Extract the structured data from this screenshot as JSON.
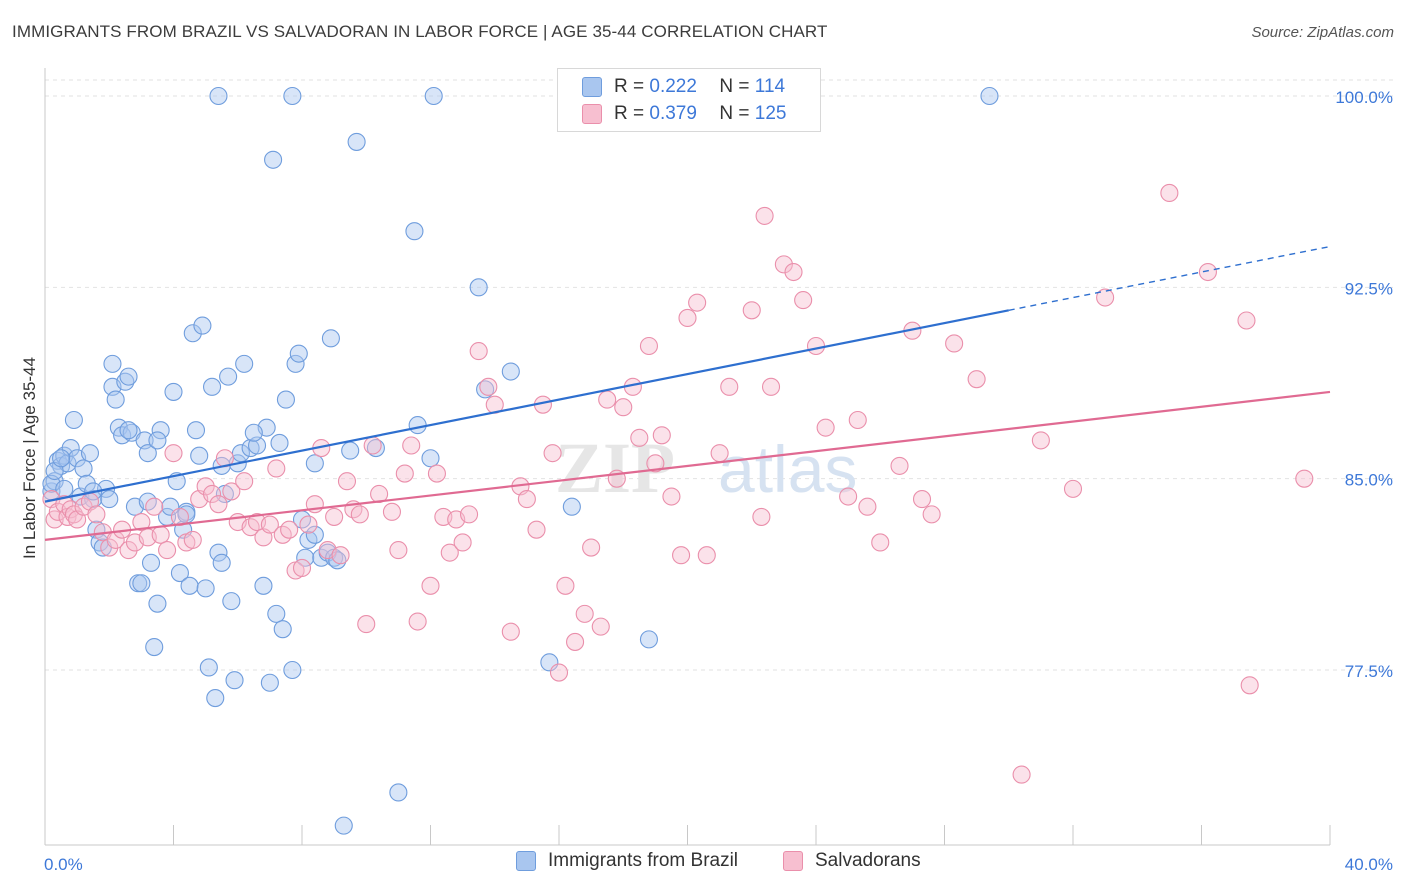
{
  "title": "IMMIGRANTS FROM BRAZIL VS SALVADORAN IN LABOR FORCE | AGE 35-44 CORRELATION CHART",
  "source": "Source: ZipAtlas.com",
  "watermark": "ZIPatlas",
  "legend": {
    "r_label": "R =",
    "n_label": "N =",
    "rows": [
      {
        "r": "0.222",
        "n": "114",
        "color": "#a9c6ef",
        "border": "#6f9ddd"
      },
      {
        "r": "0.379",
        "n": "125",
        "color": "#f7bfd0",
        "border": "#ea8fab"
      }
    ]
  },
  "chart_data": {
    "type": "scatter",
    "title": "IMMIGRANTS FROM BRAZIL VS SALVADORAN IN LABOR FORCE | AGE 35-44 CORRELATION CHART",
    "xlabel": "",
    "ylabel": "In Labor Force | Age 35-44",
    "xlim": [
      0,
      40
    ],
    "ylim": [
      71.0,
      101.0
    ],
    "x_tick_labels": {
      "min": "0.0%",
      "max": "40.0%"
    },
    "y_ticks": [
      {
        "value": 77.5,
        "label": "77.5%"
      },
      {
        "value": 85.0,
        "label": "85.0%"
      },
      {
        "value": 92.5,
        "label": "92.5%"
      },
      {
        "value": 100.0,
        "label": "100.0%"
      }
    ],
    "grid": true,
    "legend_position": "top-center",
    "series": [
      {
        "name": "Immigrants from Brazil",
        "color": "#6f9ddd",
        "fill": "#a9c6ef",
        "trend": {
          "x0": 0.0,
          "y0": 84.1,
          "x1": 30.0,
          "y1": 91.6,
          "dash_to_x": 40.0,
          "dash_to_y": 94.1,
          "color": "#2e6fcf"
        },
        "points": [
          [
            0.2,
            84.5
          ],
          [
            0.3,
            84.9
          ],
          [
            0.4,
            85.7
          ],
          [
            0.5,
            85.5
          ],
          [
            0.6,
            85.9
          ],
          [
            0.7,
            85.6
          ],
          [
            0.8,
            86.2
          ],
          [
            0.9,
            87.3
          ],
          [
            1.0,
            85.8
          ],
          [
            1.1,
            84.3
          ],
          [
            1.2,
            85.4
          ],
          [
            1.3,
            84.8
          ],
          [
            1.4,
            86.0
          ],
          [
            1.5,
            84.2
          ],
          [
            1.6,
            83.0
          ],
          [
            1.7,
            82.5
          ],
          [
            1.8,
            82.3
          ],
          [
            1.9,
            84.6
          ],
          [
            2.0,
            84.2
          ],
          [
            2.1,
            88.6
          ],
          [
            2.2,
            88.1
          ],
          [
            2.3,
            87.0
          ],
          [
            2.4,
            86.7
          ],
          [
            2.5,
            88.8
          ],
          [
            2.6,
            89.0
          ],
          [
            2.7,
            86.8
          ],
          [
            2.8,
            83.9
          ],
          [
            2.9,
            80.9
          ],
          [
            3.0,
            80.9
          ],
          [
            3.1,
            86.5
          ],
          [
            3.2,
            86.0
          ],
          [
            3.3,
            81.7
          ],
          [
            3.4,
            78.4
          ],
          [
            3.5,
            80.1
          ],
          [
            3.6,
            86.9
          ],
          [
            3.8,
            83.5
          ],
          [
            3.9,
            83.9
          ],
          [
            4.0,
            88.4
          ],
          [
            4.1,
            84.9
          ],
          [
            4.2,
            81.3
          ],
          [
            4.3,
            83.0
          ],
          [
            4.4,
            83.7
          ],
          [
            4.5,
            80.8
          ],
          [
            4.6,
            90.7
          ],
          [
            4.7,
            86.9
          ],
          [
            4.8,
            85.9
          ],
          [
            4.9,
            91.0
          ],
          [
            5.0,
            80.7
          ],
          [
            5.1,
            77.6
          ],
          [
            5.2,
            88.6
          ],
          [
            5.3,
            76.4
          ],
          [
            5.4,
            82.1
          ],
          [
            5.5,
            81.7
          ],
          [
            5.6,
            84.4
          ],
          [
            5.7,
            89.0
          ],
          [
            5.8,
            80.2
          ],
          [
            5.9,
            77.1
          ],
          [
            6.0,
            85.6
          ],
          [
            6.1,
            86.0
          ],
          [
            6.2,
            89.5
          ],
          [
            6.4,
            86.2
          ],
          [
            6.6,
            86.3
          ],
          [
            6.8,
            80.8
          ],
          [
            6.9,
            87.0
          ],
          [
            7.0,
            77.0
          ],
          [
            7.1,
            97.5
          ],
          [
            7.2,
            79.7
          ],
          [
            7.3,
            86.4
          ],
          [
            7.4,
            79.1
          ],
          [
            7.5,
            88.1
          ],
          [
            7.7,
            77.5
          ],
          [
            7.8,
            89.5
          ],
          [
            7.9,
            89.9
          ],
          [
            8.0,
            83.4
          ],
          [
            8.1,
            81.9
          ],
          [
            8.2,
            82.6
          ],
          [
            8.4,
            85.6
          ],
          [
            8.6,
            81.9
          ],
          [
            8.8,
            82.1
          ],
          [
            8.9,
            90.5
          ],
          [
            9.0,
            81.9
          ],
          [
            9.1,
            81.8
          ],
          [
            9.3,
            71.4
          ],
          [
            9.5,
            86.1
          ],
          [
            9.7,
            98.2
          ],
          [
            10.3,
            86.2
          ],
          [
            11.0,
            72.7
          ],
          [
            11.5,
            94.7
          ],
          [
            11.6,
            87.1
          ],
          [
            12.0,
            85.8
          ],
          [
            13.5,
            92.5
          ],
          [
            13.7,
            88.5
          ],
          [
            14.5,
            89.2
          ],
          [
            15.7,
            77.8
          ],
          [
            16.4,
            83.9
          ],
          [
            18.8,
            78.7
          ],
          [
            20.0,
            100.0
          ],
          [
            29.4,
            100.0
          ],
          [
            5.4,
            100.0
          ],
          [
            7.7,
            100.0
          ],
          [
            12.1,
            100.0
          ],
          [
            0.2,
            84.8
          ],
          [
            0.3,
            85.3
          ],
          [
            0.5,
            85.8
          ],
          [
            0.6,
            84.6
          ],
          [
            1.5,
            84.5
          ],
          [
            2.1,
            89.5
          ],
          [
            3.5,
            86.5
          ],
          [
            5.5,
            85.5
          ],
          [
            6.5,
            86.8
          ],
          [
            4.4,
            83.6
          ],
          [
            8.4,
            82.8
          ],
          [
            3.2,
            84.1
          ],
          [
            2.6,
            86.9
          ]
        ]
      },
      {
        "name": "Salvadorans",
        "color": "#ea8fab",
        "fill": "#f7bfd0",
        "trend": {
          "x0": 0.0,
          "y0": 82.6,
          "x1": 40.0,
          "y1": 88.4,
          "color": "#e06a92"
        },
        "points": [
          [
            0.2,
            84.2
          ],
          [
            0.3,
            83.4
          ],
          [
            0.4,
            83.7
          ],
          [
            0.6,
            84.0
          ],
          [
            0.7,
            83.5
          ],
          [
            0.8,
            83.8
          ],
          [
            0.9,
            83.6
          ],
          [
            1.0,
            83.4
          ],
          [
            1.2,
            83.9
          ],
          [
            1.4,
            84.1
          ],
          [
            1.6,
            83.6
          ],
          [
            1.8,
            82.9
          ],
          [
            2.0,
            82.3
          ],
          [
            2.2,
            82.6
          ],
          [
            2.4,
            83.0
          ],
          [
            2.6,
            82.2
          ],
          [
            2.8,
            82.5
          ],
          [
            3.0,
            83.3
          ],
          [
            3.2,
            82.7
          ],
          [
            3.4,
            83.9
          ],
          [
            3.6,
            82.8
          ],
          [
            3.8,
            82.2
          ],
          [
            4.0,
            86.0
          ],
          [
            4.2,
            83.5
          ],
          [
            4.4,
            82.5
          ],
          [
            4.6,
            82.6
          ],
          [
            4.8,
            84.2
          ],
          [
            5.0,
            84.7
          ],
          [
            5.2,
            84.4
          ],
          [
            5.4,
            84.0
          ],
          [
            5.6,
            85.8
          ],
          [
            5.8,
            84.5
          ],
          [
            6.0,
            83.3
          ],
          [
            6.2,
            84.9
          ],
          [
            6.4,
            83.1
          ],
          [
            6.6,
            83.3
          ],
          [
            6.8,
            82.7
          ],
          [
            7.0,
            83.2
          ],
          [
            7.2,
            85.4
          ],
          [
            7.4,
            82.8
          ],
          [
            7.6,
            83.0
          ],
          [
            7.8,
            81.4
          ],
          [
            8.0,
            81.5
          ],
          [
            8.2,
            83.2
          ],
          [
            8.4,
            84.0
          ],
          [
            8.6,
            86.2
          ],
          [
            8.8,
            82.2
          ],
          [
            9.0,
            83.5
          ],
          [
            9.2,
            82.0
          ],
          [
            9.4,
            84.9
          ],
          [
            9.6,
            83.8
          ],
          [
            9.8,
            83.6
          ],
          [
            10.0,
            79.3
          ],
          [
            10.2,
            86.3
          ],
          [
            10.4,
            84.4
          ],
          [
            10.8,
            83.7
          ],
          [
            11.0,
            82.2
          ],
          [
            11.2,
            85.2
          ],
          [
            11.4,
            86.3
          ],
          [
            11.6,
            79.4
          ],
          [
            12.0,
            80.8
          ],
          [
            12.2,
            85.2
          ],
          [
            12.4,
            83.5
          ],
          [
            12.6,
            82.1
          ],
          [
            12.8,
            83.4
          ],
          [
            13.0,
            82.5
          ],
          [
            13.2,
            83.6
          ],
          [
            13.5,
            90.0
          ],
          [
            13.8,
            88.6
          ],
          [
            14.0,
            87.9
          ],
          [
            14.5,
            79.0
          ],
          [
            14.8,
            84.7
          ],
          [
            15.0,
            84.2
          ],
          [
            15.3,
            83.0
          ],
          [
            15.5,
            87.9
          ],
          [
            15.8,
            86.0
          ],
          [
            16.0,
            77.4
          ],
          [
            16.2,
            80.8
          ],
          [
            16.5,
            78.6
          ],
          [
            16.8,
            79.7
          ],
          [
            17.0,
            82.3
          ],
          [
            17.3,
            79.2
          ],
          [
            17.5,
            88.1
          ],
          [
            17.8,
            85.0
          ],
          [
            18.0,
            87.8
          ],
          [
            18.3,
            88.6
          ],
          [
            18.5,
            86.6
          ],
          [
            18.8,
            90.2
          ],
          [
            19.0,
            85.6
          ],
          [
            19.2,
            86.7
          ],
          [
            19.5,
            84.3
          ],
          [
            19.8,
            82.0
          ],
          [
            20.0,
            91.3
          ],
          [
            20.3,
            91.9
          ],
          [
            20.6,
            82.0
          ],
          [
            21.0,
            86.0
          ],
          [
            21.3,
            88.6
          ],
          [
            22.0,
            91.6
          ],
          [
            22.3,
            83.5
          ],
          [
            22.6,
            88.6
          ],
          [
            23.0,
            93.4
          ],
          [
            23.3,
            93.1
          ],
          [
            23.6,
            92.0
          ],
          [
            24.0,
            90.2
          ],
          [
            24.3,
            87.0
          ],
          [
            25.0,
            84.3
          ],
          [
            25.3,
            87.3
          ],
          [
            25.6,
            83.9
          ],
          [
            26.0,
            82.5
          ],
          [
            26.6,
            85.5
          ],
          [
            27.0,
            90.8
          ],
          [
            27.3,
            84.2
          ],
          [
            27.6,
            83.6
          ],
          [
            28.3,
            90.3
          ],
          [
            29.0,
            88.9
          ],
          [
            31.0,
            86.5
          ],
          [
            32.0,
            84.6
          ],
          [
            33.0,
            92.1
          ],
          [
            35.0,
            96.2
          ],
          [
            36.2,
            93.1
          ],
          [
            37.4,
            91.2
          ],
          [
            37.5,
            76.9
          ],
          [
            39.2,
            85.0
          ],
          [
            30.4,
            73.4
          ],
          [
            22.4,
            95.3
          ]
        ]
      }
    ]
  }
}
